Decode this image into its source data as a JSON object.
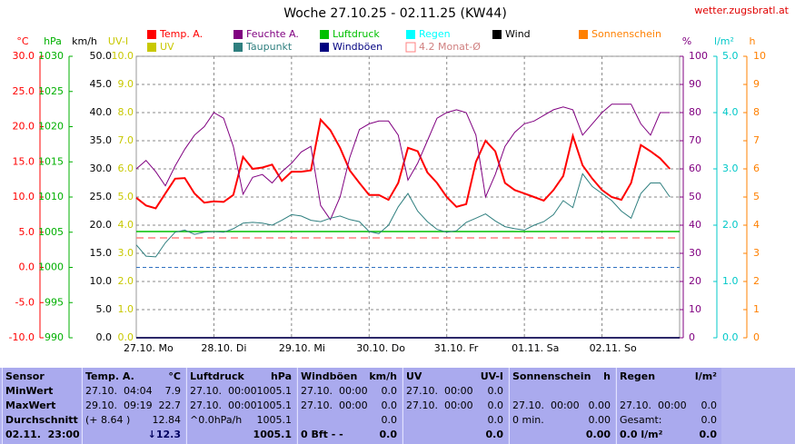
{
  "site": "wetter.zugsbratl.at",
  "chart_data": {
    "type": "line",
    "title": "Woche 27.10.25 - 02.11.25 (KW44)",
    "categories": [
      "27.10.  Mo",
      "28.10.  Di",
      "29.10.  Mi",
      "30.10.  Do",
      "31.10.  Fr",
      "01.11.  Sa",
      "02.11.  So"
    ],
    "grid": {
      "axis": "km/h"
    },
    "axes": [
      {
        "label": "°C",
        "color": "#ff0000",
        "lim": [
          -10,
          30
        ],
        "ticks": [
          {
            "value": 30,
            "label": "30.0"
          },
          {
            "value": 25,
            "label": "25.0"
          },
          {
            "value": 20,
            "label": "20.0"
          },
          {
            "value": 15,
            "label": "15.0"
          },
          {
            "value": 10,
            "label": "10.0"
          },
          {
            "value": 5,
            "label": "5.0"
          },
          {
            "value": 0,
            "label": "0.0"
          },
          {
            "value": -5,
            "label": "-5.0"
          },
          {
            "value": -10,
            "label": "-10.0"
          }
        ]
      },
      {
        "label": "hPa",
        "color": "#00b000",
        "lim": [
          990,
          1030
        ],
        "ticks": [
          1030,
          1025,
          1020,
          1015,
          1010,
          1005,
          1000,
          995,
          990
        ]
      },
      {
        "label": "km/h",
        "color": "#000000",
        "lim": [
          0,
          50
        ],
        "ticks": [
          {
            "value": 50,
            "label": "50.0"
          },
          {
            "value": 45,
            "label": "45.0"
          },
          {
            "value": 40,
            "label": "40.0"
          },
          {
            "value": 35,
            "label": "35.0"
          },
          {
            "value": 30,
            "label": "30.0"
          },
          {
            "value": 25,
            "label": "25.0"
          },
          {
            "value": 20,
            "label": "20.0"
          },
          {
            "value": 15,
            "label": "15.0"
          },
          {
            "value": 10,
            "label": "10.0"
          },
          {
            "value": 5,
            "label": "5.0"
          },
          {
            "value": 0,
            "label": "0.0"
          }
        ]
      },
      {
        "label": "UV-I",
        "color": "#c8c800",
        "lim": [
          0,
          10
        ],
        "ticks": [
          {
            "value": 10,
            "label": "10.0"
          },
          {
            "value": 9,
            "label": "9.0"
          },
          {
            "value": 8,
            "label": "8.0"
          },
          {
            "value": 7,
            "label": "7.0"
          },
          {
            "value": 6,
            "label": "6.0"
          },
          {
            "value": 5,
            "label": "5.0"
          },
          {
            "value": 4,
            "label": "4.0"
          },
          {
            "value": 3,
            "label": "3.0"
          },
          {
            "value": 2,
            "label": "2.0"
          },
          {
            "value": 1,
            "label": "1.0"
          },
          {
            "value": 0,
            "label": "0.0"
          }
        ]
      },
      {
        "label": "%",
        "color": "#800080",
        "lim": [
          0,
          100
        ],
        "ticks": [
          100,
          90,
          80,
          70,
          60,
          50,
          40,
          30,
          20,
          10,
          0
        ]
      },
      {
        "label": "l/m²",
        "color": "#00c8c8",
        "lim": [
          0,
          5
        ],
        "ticks": [
          {
            "value": 5,
            "label": "5.0"
          },
          {
            "value": 4,
            "label": "4.0"
          },
          {
            "value": 3,
            "label": "3.0"
          },
          {
            "value": 2,
            "label": "2.0"
          },
          {
            "value": 1,
            "label": "1.0"
          },
          {
            "value": 0,
            "label": "0.0"
          }
        ]
      },
      {
        "label": "h",
        "color": "#ff8000",
        "lim": [
          0,
          10
        ],
        "ticks": [
          10,
          9,
          8,
          7,
          6,
          5,
          4,
          3,
          2,
          1,
          0
        ]
      }
    ],
    "reference_lines": [
      {
        "axis": "°C",
        "value": 0,
        "color": "#3070c0"
      }
    ],
    "series": [
      {
        "name": "Temp. A.",
        "color": "#ff0000",
        "axis": "°C",
        "width": 2,
        "values": [
          [
            9.9,
            8.8,
            8.4,
            10.5,
            12.6,
            12.7,
            10.5,
            9.2
          ],
          [
            9.4,
            9.3,
            10.3,
            15.7,
            14.0,
            14.2,
            14.6,
            12.3
          ],
          [
            13.6,
            13.6,
            13.8,
            21.0,
            19.5,
            17.0,
            13.8,
            12.0
          ],
          [
            10.3,
            10.3,
            9.6,
            12.0,
            17.0,
            16.5,
            13.5,
            12.0
          ],
          [
            10.0,
            8.6,
            9.0,
            15.0,
            18.0,
            16.5,
            12.0,
            11.0
          ],
          [
            10.5,
            10.0,
            9.5,
            11.0,
            13.0,
            18.7,
            14.5,
            12.6
          ],
          [
            11.0,
            10.0,
            9.6,
            12.0,
            17.4,
            16.5,
            15.5,
            14.0
          ]
        ]
      },
      {
        "name": "Feuchte A.",
        "color": "#800080",
        "axis": "%",
        "width": 1,
        "values": [
          [
            60,
            63,
            59,
            54,
            61,
            67,
            72,
            75
          ],
          [
            80,
            78,
            68,
            51,
            57,
            58,
            55,
            59
          ],
          [
            62,
            66,
            68,
            47,
            42,
            50,
            64,
            74
          ],
          [
            76,
            77,
            77,
            72,
            56,
            62,
            70,
            78
          ],
          [
            80,
            81,
            80,
            72,
            50,
            58,
            68,
            73
          ],
          [
            76,
            77,
            79,
            81,
            82,
            81,
            72,
            76
          ],
          [
            80,
            83,
            83,
            83,
            76,
            72,
            80,
            80
          ]
        ]
      },
      {
        "name": "Luftdruck",
        "color": "#00c000",
        "axis": "hPa",
        "value": 1005.1
      },
      {
        "name": "Regen",
        "color": "#00ffff",
        "axis": "l/m²",
        "value": 0
      },
      {
        "name": "Wind",
        "color": "#000000",
        "axis": "km/h",
        "value": 0
      },
      {
        "name": "Sonnenschein",
        "color": "#ff8000",
        "axis": "h",
        "value": 0
      },
      {
        "name": "UV",
        "color": "#c8c800",
        "axis": "UV-I",
        "value": 0
      },
      {
        "name": "Taupunkt",
        "color": "#2f7f7f",
        "axis": "°C",
        "width": 1,
        "values": [
          [
            3.2,
            1.6,
            1.5,
            3.5,
            5.0,
            5.3,
            4.7,
            5.0
          ],
          [
            5.1,
            5.0,
            5.5,
            6.3,
            6.4,
            6.3,
            6.0,
            6.7
          ],
          [
            7.5,
            7.3,
            6.7,
            6.5,
            7.0,
            7.3,
            6.8,
            6.5
          ],
          [
            5.1,
            4.8,
            6.0,
            8.6,
            10.5,
            8.0,
            6.5,
            5.4
          ],
          [
            5.0,
            5.2,
            6.4,
            7.0,
            7.6,
            6.6,
            5.8,
            5.5
          ],
          [
            5.3,
            6.0,
            6.5,
            7.5,
            9.5,
            8.5,
            13.3,
            11.5
          ],
          [
            10.5,
            9.5,
            8.0,
            7.0,
            10.5,
            12.0,
            12.0,
            10.0
          ]
        ]
      },
      {
        "name": "Windböen",
        "color": "#000080",
        "axis": "km/h",
        "value": 0
      },
      {
        "name": "4.2 Monat-Ø",
        "color": "#ff8080",
        "axis": "°C",
        "value": 4.2,
        "dashed": true
      }
    ]
  },
  "table": {
    "header": [
      {
        "left": "Sensor"
      },
      {
        "left": "Temp. A.",
        "right": "°C"
      },
      {
        "left": "Luftdruck",
        "right": "hPa"
      },
      {
        "left": "Windböen",
        "right": "km/h"
      },
      {
        "left": "UV",
        "right": "UV-I"
      },
      {
        "left": "Sonnenschein",
        "right": "h"
      },
      {
        "left": "Regen",
        "right": "l/m²"
      }
    ],
    "rows": [
      [
        {
          "left": "MinWert"
        },
        {
          "left": "27.10.  04:04",
          "right": "7.9"
        },
        {
          "left": "27.10.  00:00",
          "right": "1005.1"
        },
        {
          "left": "27.10.  00:00",
          "right": "0.0"
        },
        {
          "left": "27.10.  00:00",
          "right": "0.0"
        },
        null,
        null
      ],
      [
        {
          "left": "MaxWert"
        },
        {
          "left": "29.10.  09:19",
          "right": "22.7"
        },
        {
          "left": "27.10.  00:00",
          "right": "1005.1"
        },
        {
          "left": "27.10.  00:00",
          "right": "0.0"
        },
        {
          "left": "27.10.  00:00",
          "right": "0.0"
        },
        {
          "left": "27.10.  00:00",
          "right": "0.00"
        },
        {
          "left": "27.10.  00:00",
          "right": "0.0"
        }
      ],
      [
        {
          "left": "Durchschnitt"
        },
        {
          "left": "(+ 8.64 )",
          "right": "12.84"
        },
        {
          "left": "^0.0hPa/h",
          "right": "1005.1"
        },
        {
          "right": "0.0"
        },
        {
          "right": "0.0"
        },
        {
          "left": "0 min.",
          "right": "0.00"
        },
        {
          "left": "Gesamt:",
          "right": "0.0"
        }
      ],
      [
        {
          "left": "02.11.  23:00"
        },
        {
          "right": "↓12.3"
        },
        {
          "right": "1005.1"
        },
        {
          "left": "0 Bft - -",
          "right": "0.0"
        },
        {
          "right": "0.0"
        },
        {
          "right": "0.00"
        },
        {
          "left": "0.0 l/m²",
          "right": "0.0"
        }
      ]
    ]
  }
}
